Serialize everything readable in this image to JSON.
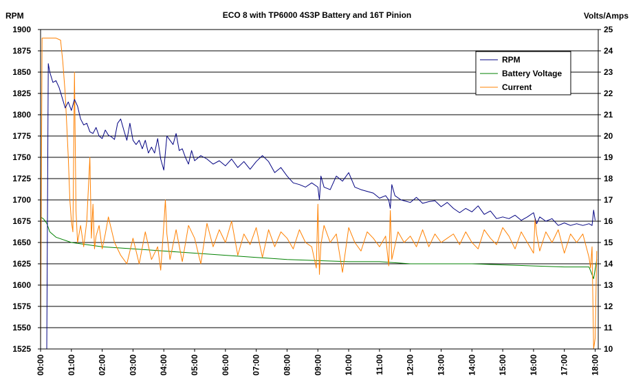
{
  "chart_data": {
    "type": "line",
    "title": "ECO 8 with TP6000 4S3P Battery and 16T Pinion",
    "ylabel_left": "RPM",
    "ylabel_right": "Volts/Amps",
    "xlabel": "",
    "x_ticks": [
      "00:00",
      "01:00",
      "02:00",
      "03:00",
      "04:00",
      "05:00",
      "06:00",
      "07:00",
      "08:00",
      "09:00",
      "10:00",
      "11:00",
      "12:00",
      "13:00",
      "14:00",
      "15:00",
      "16:00",
      "17:00",
      "18:00"
    ],
    "xlim": [
      0,
      18.1
    ],
    "ylim_left": [
      1525,
      1900
    ],
    "ylim_right": [
      10,
      25
    ],
    "left_ticks": [
      "1525",
      "1550",
      "1575",
      "1600",
      "1625",
      "1650",
      "1675",
      "1700",
      "1725",
      "1750",
      "1775",
      "1800",
      "1825",
      "1850",
      "1875",
      "1900"
    ],
    "right_ticks": [
      "10",
      "11",
      "12",
      "13",
      "14",
      "15",
      "16",
      "17",
      "18",
      "19",
      "20",
      "21",
      "22",
      "23",
      "24",
      "25"
    ],
    "grid": "horizontal",
    "legend_position": "top-right",
    "colors": {
      "rpm": "#000080",
      "battery_voltage": "#008000",
      "current": "#FF8000",
      "plot_bg": "#FFFFFF",
      "grid": "#000000"
    },
    "series": [
      {
        "name": "RPM",
        "axis": "left",
        "x": [
          0.2,
          0.25,
          0.3,
          0.4,
          0.5,
          0.6,
          0.7,
          0.8,
          0.9,
          1.0,
          1.1,
          1.2,
          1.3,
          1.4,
          1.5,
          1.6,
          1.7,
          1.8,
          1.9,
          2.0,
          2.1,
          2.2,
          2.3,
          2.4,
          2.5,
          2.6,
          2.7,
          2.8,
          2.9,
          3.0,
          3.1,
          3.2,
          3.3,
          3.4,
          3.5,
          3.6,
          3.7,
          3.8,
          3.9,
          4.0,
          4.1,
          4.2,
          4.3,
          4.4,
          4.5,
          4.6,
          4.7,
          4.8,
          4.9,
          5.0,
          5.2,
          5.4,
          5.6,
          5.8,
          6.0,
          6.2,
          6.4,
          6.6,
          6.8,
          7.0,
          7.2,
          7.4,
          7.6,
          7.8,
          8.0,
          8.2,
          8.4,
          8.6,
          8.8,
          9.0,
          9.05,
          9.1,
          9.2,
          9.4,
          9.6,
          9.8,
          10.0,
          10.2,
          10.4,
          10.6,
          10.8,
          11.0,
          11.2,
          11.3,
          11.35,
          11.4,
          11.5,
          11.7,
          11.9,
          12.0,
          12.2,
          12.4,
          12.6,
          12.8,
          13.0,
          13.2,
          13.4,
          13.6,
          13.8,
          14.0,
          14.2,
          14.4,
          14.6,
          14.8,
          15.0,
          15.2,
          15.4,
          15.6,
          15.8,
          16.0,
          16.1,
          16.2,
          16.4,
          16.6,
          16.8,
          17.0,
          17.2,
          17.4,
          17.6,
          17.8,
          17.9,
          17.95,
          18.0
        ],
        "values": [
          1525,
          1860,
          1850,
          1838,
          1840,
          1832,
          1820,
          1808,
          1815,
          1805,
          1818,
          1810,
          1795,
          1788,
          1790,
          1780,
          1778,
          1785,
          1775,
          1772,
          1782,
          1776,
          1774,
          1771,
          1790,
          1795,
          1782,
          1770,
          1790,
          1770,
          1765,
          1770,
          1760,
          1770,
          1755,
          1762,
          1755,
          1772,
          1748,
          1735,
          1775,
          1770,
          1765,
          1778,
          1758,
          1760,
          1750,
          1742,
          1758,
          1746,
          1752,
          1748,
          1742,
          1746,
          1740,
          1748,
          1738,
          1745,
          1736,
          1745,
          1752,
          1745,
          1732,
          1738,
          1728,
          1720,
          1718,
          1715,
          1720,
          1715,
          1700,
          1728,
          1715,
          1712,
          1728,
          1722,
          1732,
          1715,
          1712,
          1710,
          1708,
          1702,
          1705,
          1700,
          1690,
          1718,
          1705,
          1700,
          1698,
          1697,
          1703,
          1696,
          1698,
          1699,
          1692,
          1697,
          1690,
          1685,
          1690,
          1686,
          1693,
          1683,
          1687,
          1678,
          1680,
          1678,
          1682,
          1676,
          1680,
          1685,
          1672,
          1680,
          1675,
          1678,
          1670,
          1673,
          1670,
          1672,
          1670,
          1672,
          1670,
          1688,
          1676
        ]
      },
      {
        "name": "Battery Voltage",
        "axis": "right",
        "x": [
          0.0,
          0.1,
          0.2,
          0.3,
          0.5,
          1.0,
          2.0,
          3.0,
          4.0,
          5.0,
          6.0,
          7.0,
          8.0,
          9.0,
          10.0,
          11.0,
          12.0,
          13.0,
          14.0,
          15.0,
          16.0,
          17.0,
          17.8,
          17.95,
          18.05
        ],
        "values": [
          16.2,
          16.1,
          15.9,
          15.5,
          15.25,
          15.0,
          14.8,
          14.7,
          14.6,
          14.5,
          14.4,
          14.3,
          14.2,
          14.15,
          14.1,
          14.1,
          14.0,
          14.0,
          14.0,
          13.95,
          13.9,
          13.85,
          13.85,
          13.3,
          14.2
        ]
      },
      {
        "name": "Current",
        "axis": "right",
        "x": [
          0.0,
          0.05,
          0.5,
          0.65,
          0.72,
          0.8,
          0.85,
          0.9,
          0.95,
          1.0,
          1.05,
          1.1,
          1.15,
          1.2,
          1.3,
          1.4,
          1.5,
          1.6,
          1.65,
          1.7,
          1.75,
          1.8,
          1.9,
          2.0,
          2.1,
          2.2,
          2.4,
          2.6,
          2.8,
          3.0,
          3.2,
          3.4,
          3.6,
          3.8,
          3.9,
          4.0,
          4.05,
          4.1,
          4.2,
          4.4,
          4.6,
          4.8,
          5.0,
          5.2,
          5.4,
          5.6,
          5.8,
          6.0,
          6.2,
          6.4,
          6.6,
          6.8,
          7.0,
          7.2,
          7.4,
          7.6,
          7.8,
          8.0,
          8.2,
          8.4,
          8.6,
          8.8,
          8.95,
          9.0,
          9.05,
          9.1,
          9.2,
          9.4,
          9.6,
          9.8,
          10.0,
          10.2,
          10.4,
          10.6,
          10.8,
          11.0,
          11.2,
          11.3,
          11.35,
          11.4,
          11.6,
          11.8,
          12.0,
          12.2,
          12.4,
          12.6,
          12.8,
          13.0,
          13.2,
          13.4,
          13.6,
          13.8,
          14.0,
          14.2,
          14.4,
          14.6,
          14.8,
          15.0,
          15.2,
          15.4,
          15.6,
          15.8,
          16.0,
          16.05,
          16.1,
          16.2,
          16.4,
          16.6,
          16.8,
          17.0,
          17.2,
          17.4,
          17.6,
          17.8,
          17.85,
          17.9,
          17.95,
          18.0,
          18.05
        ],
        "values": [
          10.0,
          24.6,
          24.6,
          24.5,
          23.5,
          22.0,
          20.5,
          19.0,
          17.0,
          16.0,
          15.5,
          23.0,
          16.5,
          15.0,
          15.8,
          14.8,
          16.0,
          19.0,
          15.2,
          16.8,
          14.7,
          15.3,
          15.8,
          14.7,
          15.4,
          16.2,
          15.0,
          14.4,
          14.0,
          15.2,
          14.0,
          15.5,
          14.2,
          14.8,
          13.7,
          15.8,
          17.0,
          15.4,
          14.2,
          15.6,
          14.1,
          15.8,
          15.2,
          14.0,
          15.9,
          14.8,
          15.6,
          15.0,
          16.0,
          14.4,
          15.4,
          14.9,
          15.7,
          14.3,
          15.6,
          14.8,
          15.5,
          15.2,
          14.7,
          15.6,
          15.0,
          14.8,
          13.8,
          16.8,
          13.5,
          14.9,
          15.8,
          15.0,
          15.4,
          13.6,
          15.7,
          15.0,
          14.6,
          15.5,
          15.2,
          14.8,
          15.3,
          13.9,
          16.5,
          14.2,
          15.5,
          15.0,
          15.3,
          14.8,
          15.6,
          14.8,
          15.4,
          15.0,
          15.2,
          15.4,
          14.9,
          15.5,
          15.0,
          14.7,
          15.6,
          15.2,
          14.9,
          15.7,
          15.3,
          14.7,
          15.5,
          15.0,
          14.5,
          16.1,
          15.4,
          14.6,
          15.5,
          15.0,
          15.6,
          14.5,
          15.4,
          15.0,
          15.4,
          14.3,
          13.8,
          14.8,
          10.0,
          10.5,
          14.6
        ]
      }
    ]
  }
}
